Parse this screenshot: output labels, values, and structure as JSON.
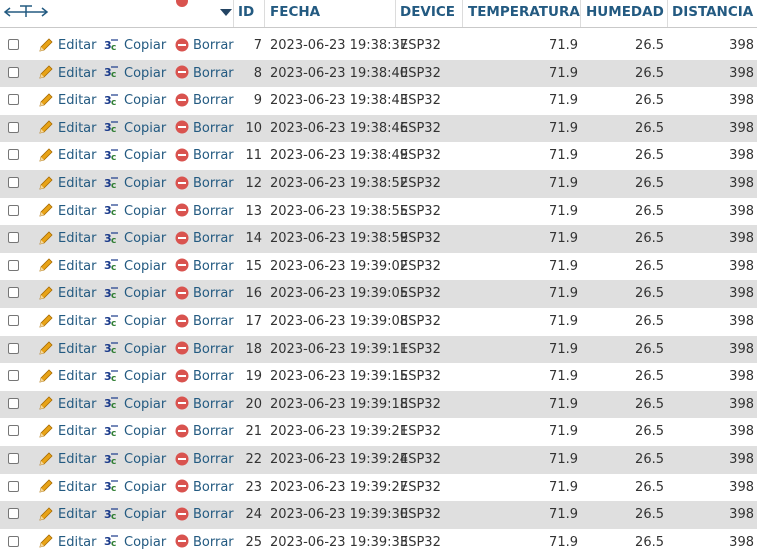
{
  "table": {
    "columns": [
      "ID",
      "FECHA",
      "DEVICE",
      "TEMPERATURA",
      "HUMEDAD",
      "DISTANCIA"
    ],
    "actions": {
      "edit": "Editar",
      "copy": "Copiar",
      "delete": "Borrar"
    },
    "rows": [
      {
        "id": "7",
        "fecha": "2023-06-23 19:38:37",
        "device": "ESP32",
        "temperatura": "71.9",
        "humedad": "26.5",
        "distancia": "398"
      },
      {
        "id": "8",
        "fecha": "2023-06-23 19:38:40",
        "device": "ESP32",
        "temperatura": "71.9",
        "humedad": "26.5",
        "distancia": "398"
      },
      {
        "id": "9",
        "fecha": "2023-06-23 19:38:43",
        "device": "ESP32",
        "temperatura": "71.9",
        "humedad": "26.5",
        "distancia": "398"
      },
      {
        "id": "10",
        "fecha": "2023-06-23 19:38:46",
        "device": "ESP32",
        "temperatura": "71.9",
        "humedad": "26.5",
        "distancia": "398"
      },
      {
        "id": "11",
        "fecha": "2023-06-23 19:38:49",
        "device": "ESP32",
        "temperatura": "71.9",
        "humedad": "26.5",
        "distancia": "398"
      },
      {
        "id": "12",
        "fecha": "2023-06-23 19:38:52",
        "device": "ESP32",
        "temperatura": "71.9",
        "humedad": "26.5",
        "distancia": "398"
      },
      {
        "id": "13",
        "fecha": "2023-06-23 19:38:55",
        "device": "ESP32",
        "temperatura": "71.9",
        "humedad": "26.5",
        "distancia": "398"
      },
      {
        "id": "14",
        "fecha": "2023-06-23 19:38:59",
        "device": "ESP32",
        "temperatura": "71.9",
        "humedad": "26.5",
        "distancia": "398"
      },
      {
        "id": "15",
        "fecha": "2023-06-23 19:39:02",
        "device": "ESP32",
        "temperatura": "71.9",
        "humedad": "26.5",
        "distancia": "398"
      },
      {
        "id": "16",
        "fecha": "2023-06-23 19:39:05",
        "device": "ESP32",
        "temperatura": "71.9",
        "humedad": "26.5",
        "distancia": "398"
      },
      {
        "id": "17",
        "fecha": "2023-06-23 19:39:08",
        "device": "ESP32",
        "temperatura": "71.9",
        "humedad": "26.5",
        "distancia": "398"
      },
      {
        "id": "18",
        "fecha": "2023-06-23 19:39:11",
        "device": "ESP32",
        "temperatura": "71.9",
        "humedad": "26.5",
        "distancia": "398"
      },
      {
        "id": "19",
        "fecha": "2023-06-23 19:39:15",
        "device": "ESP32",
        "temperatura": "71.9",
        "humedad": "26.5",
        "distancia": "398"
      },
      {
        "id": "20",
        "fecha": "2023-06-23 19:39:18",
        "device": "ESP32",
        "temperatura": "71.9",
        "humedad": "26.5",
        "distancia": "398"
      },
      {
        "id": "21",
        "fecha": "2023-06-23 19:39:21",
        "device": "ESP32",
        "temperatura": "71.9",
        "humedad": "26.5",
        "distancia": "398"
      },
      {
        "id": "22",
        "fecha": "2023-06-23 19:39:24",
        "device": "ESP32",
        "temperatura": "71.9",
        "humedad": "26.5",
        "distancia": "398"
      },
      {
        "id": "23",
        "fecha": "2023-06-23 19:39:27",
        "device": "ESP32",
        "temperatura": "71.9",
        "humedad": "26.5",
        "distancia": "398"
      },
      {
        "id": "24",
        "fecha": "2023-06-23 19:39:30",
        "device": "ESP32",
        "temperatura": "71.9",
        "humedad": "26.5",
        "distancia": "398"
      },
      {
        "id": "25",
        "fecha": "2023-06-23 19:39:33",
        "device": "ESP32",
        "temperatura": "71.9",
        "humedad": "26.5",
        "distancia": "398"
      }
    ]
  },
  "icons": {
    "nav": "left-right-arrows-icon",
    "sort": "sort-desc-icon",
    "edit": "pencil-icon",
    "copy": "copy-icon",
    "delete": "delete-icon"
  },
  "colors": {
    "link": "#235a81",
    "row_alt": "#dfdfdf",
    "delete": "#d9534f",
    "pencil": "#e8a317"
  }
}
